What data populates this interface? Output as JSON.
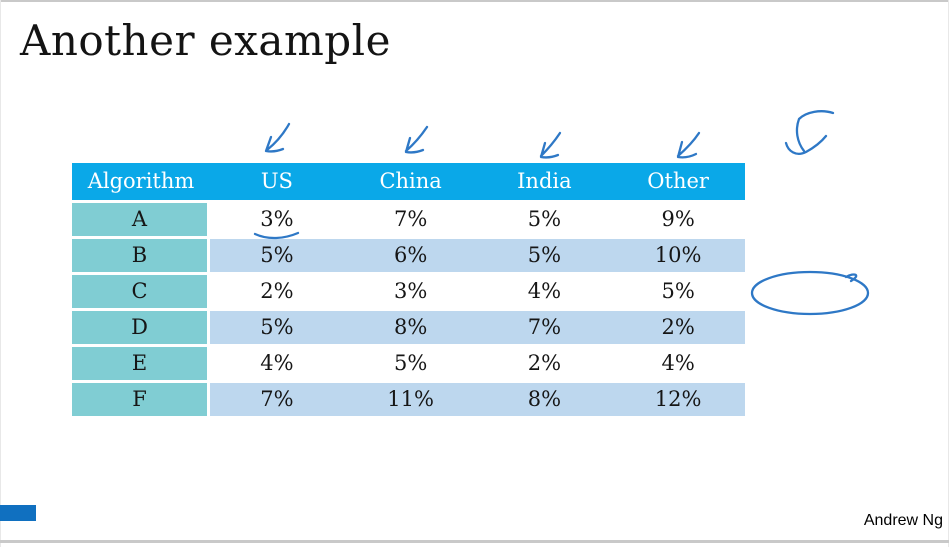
{
  "slide": {
    "title": "Another example",
    "author": "Andrew Ng"
  },
  "table": {
    "columns": [
      "Algorithm",
      "US",
      "China",
      "India",
      "Other"
    ],
    "rows": [
      {
        "algorithm": "A",
        "values": [
          "3%",
          "7%",
          "5%",
          "9%"
        ]
      },
      {
        "algorithm": "B",
        "values": [
          "5%",
          "6%",
          "5%",
          "10%"
        ]
      },
      {
        "algorithm": "C",
        "values": [
          "2%",
          "3%",
          "4%",
          "5%"
        ]
      },
      {
        "algorithm": "D",
        "values": [
          "5%",
          "8%",
          "7%",
          "2%"
        ]
      },
      {
        "algorithm": "E",
        "values": [
          "4%",
          "5%",
          "2%",
          "4%"
        ]
      },
      {
        "algorithm": "F",
        "values": [
          "7%",
          "11%",
          "8%",
          "12%"
        ]
      }
    ]
  },
  "annotations": {
    "ink_color": "#2E78C6",
    "underlined_value": "3%",
    "items": [
      {
        "name": "handdrawn-arrow-over-us-column"
      },
      {
        "name": "handdrawn-arrow-over-china-column"
      },
      {
        "name": "handdrawn-arrow-over-india-column"
      },
      {
        "name": "handdrawn-arrow-over-other-column"
      },
      {
        "name": "handdrawn-large-arrow-top-right"
      },
      {
        "name": "handdrawn-underline-under-3-percent"
      },
      {
        "name": "handdrawn-ellipse-right-of-row-c"
      }
    ]
  },
  "colors": {
    "header_bg": "#0AA8E8",
    "header_text": "#FFFFFF",
    "algorithm_column_bg": "#80CDD3",
    "row_even_bg": "#FFFFFF",
    "row_odd_bg": "#BDD7EE",
    "accent_bar": "#1070C0",
    "edge_line": "#C9C9C9"
  }
}
